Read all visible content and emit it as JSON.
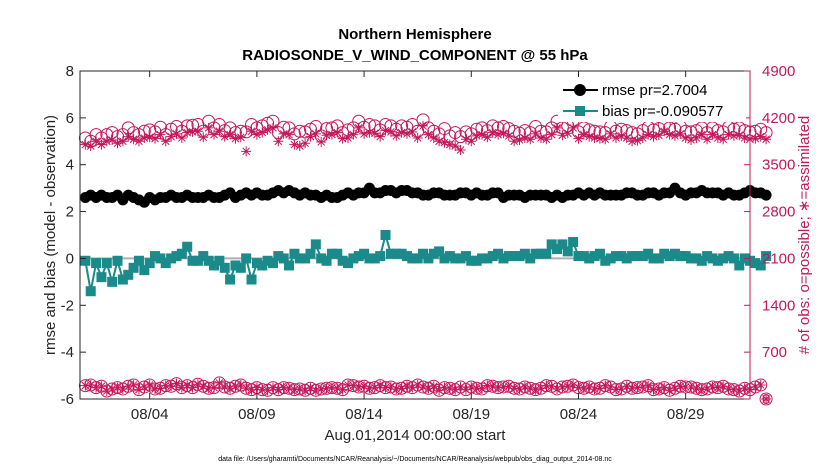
{
  "chart_data": {
    "type": "line",
    "title_line1": "Northern Hemisphere",
    "title_line2": "RADIOSONDE_V_WIND_COMPONENT @ 55 hPa",
    "xlabel": "Aug.01,2014 00:00:00 start",
    "ylabel_left": "rmse and bias (model - observation)",
    "ylabel_right": "# of obs: o=possible; ∗=assimilated",
    "footnote": "data file: /Users/gharamti/Documents/NCAR/Reanalysis/~/Documents/NCAR/Reanalysis/webpub/obs_diag_output_2014-08.nc",
    "xlim": [
      0.75,
      32
    ],
    "ylim_left": [
      -6,
      8
    ],
    "ylim_right": [
      0,
      4900
    ],
    "x_ticks": [
      4,
      9,
      14,
      19,
      24,
      29
    ],
    "x_tick_labels": [
      "08/04",
      "08/09",
      "08/14",
      "08/19",
      "08/24",
      "08/29"
    ],
    "y_left_ticks": [
      "-6",
      "-4",
      "-2",
      "0",
      "2",
      "4",
      "6",
      "8"
    ],
    "y_right_ticks": [
      "0",
      "700",
      "1400",
      "2100",
      "2800",
      "3500",
      "4200",
      "4900"
    ],
    "legend": [
      "rmse pr=2.7004",
      "bias pr=-0.090577"
    ],
    "colors": {
      "rmse": "#000000",
      "bias": "#1b8a8a",
      "obs": "#c2185b",
      "zero_line": "#b0b0b0",
      "right_axis": "#c2185b"
    },
    "x_start": 1.0,
    "x_step": 0.25,
    "series": [
      {
        "name": "rmse",
        "axis": "left",
        "values": [
          2.6,
          2.7,
          2.6,
          2.7,
          2.6,
          2.6,
          2.7,
          2.5,
          2.7,
          2.6,
          2.5,
          2.4,
          2.6,
          2.5,
          2.6,
          2.6,
          2.7,
          2.6,
          2.6,
          2.7,
          2.6,
          2.6,
          2.6,
          2.7,
          2.6,
          2.6,
          2.7,
          2.8,
          2.6,
          2.7,
          2.8,
          2.7,
          2.8,
          2.7,
          2.7,
          2.8,
          2.9,
          2.8,
          2.9,
          2.8,
          2.7,
          2.8,
          2.7,
          2.7,
          2.6,
          2.7,
          2.6,
          2.6,
          2.7,
          2.8,
          2.7,
          2.8,
          2.8,
          3.0,
          2.8,
          2.8,
          2.9,
          2.9,
          2.8,
          2.9,
          2.9,
          2.8,
          2.8,
          2.7,
          2.7,
          2.8,
          2.8,
          2.7,
          2.7,
          2.7,
          2.8,
          2.8,
          2.7,
          2.8,
          2.7,
          2.7,
          2.8,
          2.8,
          2.6,
          2.7,
          2.7,
          2.7,
          2.6,
          2.7,
          2.7,
          2.7,
          2.7,
          2.6,
          2.7,
          2.6,
          2.7,
          2.7,
          2.8,
          2.7,
          2.8,
          2.7,
          2.8,
          2.7,
          2.7,
          2.7,
          2.7,
          2.8,
          2.8,
          2.7,
          2.7,
          2.8,
          2.8,
          2.7,
          2.8,
          2.8,
          3.0,
          2.8,
          2.7,
          2.8,
          2.8,
          2.9,
          2.8,
          2.8,
          2.8,
          2.7,
          2.8,
          2.7,
          2.7,
          2.8,
          2.9,
          2.8,
          2.8,
          2.7
        ]
      },
      {
        "name": "bias",
        "axis": "left",
        "values": [
          -0.1,
          -1.4,
          -0.2,
          -0.8,
          -0.2,
          -1.0,
          -0.1,
          -0.9,
          -0.7,
          -0.4,
          -0.1,
          -0.5,
          -0.2,
          0.1,
          0.0,
          -0.2,
          0.0,
          0.1,
          0.2,
          0.5,
          -0.1,
          -0.1,
          0.1,
          -0.1,
          -0.3,
          -0.1,
          -0.4,
          -0.9,
          -0.3,
          -0.4,
          0.0,
          -0.9,
          -0.2,
          -0.3,
          -0.1,
          -0.2,
          0.1,
          0.0,
          -0.3,
          0.2,
          0.0,
          0.0,
          0.2,
          0.6,
          0.0,
          -0.1,
          0.2,
          0.2,
          -0.1,
          -0.2,
          0.0,
          0.1,
          0.2,
          0.0,
          0.0,
          0.1,
          1.0,
          0.2,
          0.2,
          0.2,
          0.1,
          0.0,
          0.0,
          0.2,
          0.0,
          0.2,
          0.3,
          0.0,
          0.1,
          0.0,
          0.0,
          0.1,
          -0.1,
          -0.1,
          0.0,
          0.0,
          0.1,
          0.2,
          0.0,
          0.1,
          0.1,
          0.1,
          0.2,
          0.0,
          0.2,
          0.2,
          0.2,
          0.6,
          0.4,
          0.6,
          0.3,
          0.7,
          0.1,
          0.1,
          0.0,
          0.1,
          0.2,
          -0.1,
          0.0,
          0.1,
          0.1,
          0.0,
          0.1,
          0.1,
          0.1,
          0.2,
          0.0,
          0.0,
          0.2,
          0.1,
          0.2,
          0.1,
          0.1,
          0.0,
          0.0,
          -0.1,
          0.1,
          0.0,
          -0.1,
          0.0,
          0.1,
          0.0,
          -0.3,
          0.0,
          -0.1,
          -0.2,
          -0.3,
          0.1
        ]
      },
      {
        "name": "obs_possible",
        "axis": "right",
        "values": [
          200,
          210,
          170,
          190,
          120,
          150,
          170,
          150,
          190,
          210,
          140,
          180,
          210,
          150,
          160,
          200,
          190,
          230,
          170,
          200,
          170,
          220,
          190,
          160,
          170,
          240,
          180,
          160,
          190,
          210,
          160,
          140,
          170,
          140,
          130,
          170,
          140,
          170,
          160,
          140,
          150,
          130,
          160,
          130,
          150,
          160,
          170,
          160,
          140,
          210,
          200,
          180,
          190,
          160,
          170,
          200,
          170,
          180,
          150,
          160,
          190,
          170,
          210,
          180,
          160,
          190,
          130,
          170,
          160,
          140,
          180,
          140,
          180,
          160,
          150,
          200,
          190,
          170,
          180,
          190,
          160,
          150,
          180,
          160,
          140,
          160,
          200,
          190,
          150,
          180,
          190,
          210,
          170,
          160,
          180,
          150,
          160,
          200,
          180,
          140,
          150,
          190,
          160,
          170,
          180,
          200,
          140,
          150,
          170,
          130,
          160,
          190,
          180,
          180,
          160,
          140,
          150,
          180,
          170,
          190,
          150,
          140,
          120,
          160,
          140,
          180,
          210,
          0
        ]
      },
      {
        "name": "obs_possible_top",
        "axis": "right",
        "values": [
          3900,
          3850,
          3950,
          3900,
          3950,
          3980,
          3920,
          3950,
          4050,
          3980,
          3950,
          4000,
          4020,
          3990,
          4060,
          3950,
          4030,
          4070,
          4000,
          4080,
          4090,
          4100,
          4000,
          4150,
          4050,
          4100,
          4010,
          4050,
          3980,
          4000,
          3990,
          4100,
          4050,
          4080,
          4120,
          4150,
          3980,
          4060,
          4050,
          3960,
          4000,
          3990,
          4030,
          4070,
          3930,
          4040,
          4050,
          4080,
          3980,
          4020,
          4050,
          4150,
          4060,
          4100,
          4080,
          4020,
          4100,
          4080,
          4030,
          4080,
          4060,
          4100,
          4000,
          4170,
          4050,
          4000,
          3960,
          4040,
          3930,
          3980,
          3920,
          3990,
          3960,
          4030,
          4050,
          4010,
          4080,
          4050,
          4070,
          4040,
          4000,
          3970,
          4010,
          3980,
          4070,
          4000,
          3990,
          4050,
          4150,
          4050,
          4080,
          4160,
          3990,
          4050,
          4020,
          4000,
          3990,
          3980,
          4070,
          4000,
          4030,
          4010,
          3980,
          3960,
          4010,
          4060,
          4020,
          4040,
          4100,
          4050,
          4030,
          4070,
          4000,
          3990,
          4010,
          4050,
          3980,
          4050,
          4010,
          3990,
          4060,
          4030,
          4050,
          4010,
          3990,
          4000,
          4030,
          3980
        ]
      },
      {
        "name": "obs_assimilated",
        "axis": "right",
        "values": [
          200,
          210,
          170,
          190,
          120,
          150,
          170,
          150,
          190,
          210,
          140,
          180,
          210,
          150,
          160,
          200,
          190,
          230,
          170,
          200,
          170,
          220,
          190,
          160,
          170,
          240,
          180,
          160,
          190,
          210,
          160,
          140,
          170,
          140,
          130,
          170,
          140,
          170,
          160,
          140,
          150,
          130,
          160,
          130,
          150,
          160,
          170,
          160,
          140,
          210,
          200,
          180,
          190,
          160,
          170,
          200,
          170,
          180,
          150,
          160,
          190,
          170,
          210,
          180,
          160,
          190,
          130,
          170,
          160,
          140,
          180,
          140,
          180,
          160,
          150,
          200,
          190,
          170,
          180,
          190,
          160,
          150,
          180,
          160,
          140,
          160,
          200,
          190,
          150,
          180,
          190,
          210,
          170,
          160,
          180,
          150,
          160,
          200,
          180,
          140,
          150,
          190,
          160,
          170,
          180,
          200,
          140,
          150,
          170,
          130,
          160,
          190,
          180,
          180,
          160,
          140,
          150,
          180,
          170,
          190,
          150,
          140,
          120,
          160,
          140,
          180,
          210,
          0
        ]
      },
      {
        "name": "obs_assimilated_top",
        "axis": "right",
        "values": [
          3800,
          3780,
          3850,
          3800,
          3850,
          3870,
          3820,
          3850,
          3920,
          3880,
          3850,
          3900,
          3910,
          3890,
          3950,
          3850,
          3920,
          3960,
          3900,
          3980,
          3990,
          4000,
          3910,
          4050,
          3950,
          4000,
          3920,
          3950,
          3890,
          3910,
          3700,
          4000,
          3950,
          3980,
          4020,
          4050,
          3850,
          3960,
          3950,
          3800,
          3780,
          3820,
          3920,
          3960,
          3840,
          3940,
          3950,
          3980,
          3890,
          3900,
          3950,
          4050,
          3960,
          3980,
          3970,
          3920,
          4010,
          3990,
          3930,
          3980,
          3960,
          3990,
          3900,
          4080,
          3950,
          3900,
          3850,
          3830,
          3800,
          3780,
          3720,
          3880,
          3850,
          3930,
          3950,
          3910,
          3980,
          3950,
          3970,
          3930,
          3850,
          3870,
          3900,
          3880,
          3960,
          3900,
          3880,
          3950,
          4050,
          3940,
          3970,
          4050,
          3890,
          3950,
          3920,
          3900,
          3890,
          3880,
          3960,
          3900,
          3930,
          3900,
          3850,
          3860,
          3900,
          3950,
          3920,
          3940,
          4000,
          3950,
          3930,
          3960,
          3900,
          3870,
          3900,
          3950,
          3880,
          3950,
          3900,
          3880,
          3950,
          3930,
          3940,
          3900,
          3880,
          3890,
          3920,
          3880
        ]
      }
    ]
  }
}
